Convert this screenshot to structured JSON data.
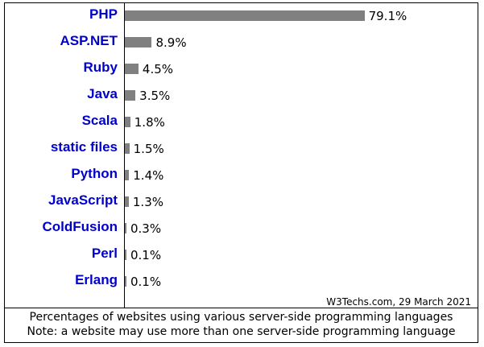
{
  "chart_data": {
    "type": "bar",
    "orientation": "horizontal",
    "categories": [
      "PHP",
      "ASP.NET",
      "Ruby",
      "Java",
      "Scala",
      "static files",
      "Python",
      "JavaScript",
      "ColdFusion",
      "Perl",
      "Erlang"
    ],
    "values": [
      79.1,
      8.9,
      4.5,
      3.5,
      1.8,
      1.5,
      1.4,
      1.3,
      0.3,
      0.1,
      0.1
    ],
    "value_labels": [
      "79.1%",
      "8.9%",
      "4.5%",
      "3.5%",
      "1.8%",
      "1.5%",
      "1.4%",
      "1.3%",
      "0.3%",
      "0.1%",
      "0.1%"
    ],
    "unit": "%",
    "xlim": [
      0,
      100
    ],
    "grid": false,
    "bar_color": "#808080",
    "category_color": "#0000cc"
  },
  "source": "W3Techs.com, 29 March 2021",
  "caption": {
    "line1": "Percentages of websites using various server-side programming languages",
    "line2": "Note: a website may use more than one server-side programming language"
  }
}
